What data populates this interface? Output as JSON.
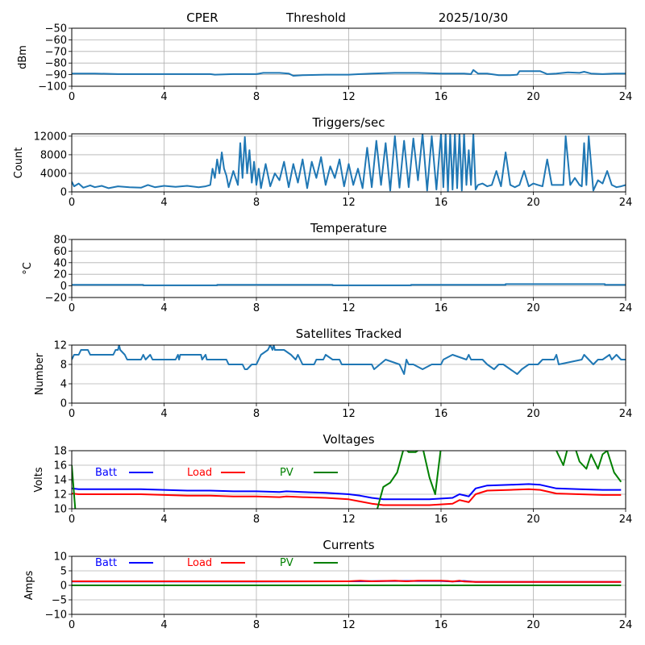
{
  "header": {
    "station": "CPER",
    "mode": "Threshold",
    "date": "2025/10/30"
  },
  "chart_data": [
    {
      "id": "power",
      "type": "line",
      "title": "",
      "ylabel": "dBm",
      "xlabel": "",
      "xlim": [
        0,
        24
      ],
      "ylim": [
        -100,
        -50
      ],
      "xticks": [
        0,
        4,
        8,
        12,
        16,
        20,
        24
      ],
      "yticks": [
        -100,
        -90,
        -80,
        -70,
        -60,
        -50
      ],
      "ytick_labels": [
        "−100",
        "−90",
        "−80",
        "−70",
        "−60",
        "−50"
      ],
      "grid": true,
      "series": [
        {
          "name": "power",
          "color": "#1f77b4",
          "x": [
            0,
            1,
            2,
            3,
            4,
            5,
            6,
            6.2,
            7,
            8,
            8.3,
            9,
            9.4,
            9.6,
            10,
            11,
            12,
            12.5,
            13,
            14,
            15,
            16,
            16.5,
            17,
            17.3,
            17.4,
            17.6,
            18,
            18.5,
            19,
            19.3,
            19.4,
            20,
            20.3,
            20.6,
            21,
            21.5,
            22,
            22.2,
            22.5,
            23,
            23.5,
            24
          ],
          "y": [
            -89,
            -89,
            -89.5,
            -89.5,
            -89.5,
            -89.5,
            -89.5,
            -90,
            -89.5,
            -89.5,
            -88.5,
            -88.5,
            -89,
            -91,
            -90.5,
            -90,
            -90,
            -89.5,
            -89,
            -88.5,
            -88.5,
            -89,
            -89,
            -89,
            -89.5,
            -86,
            -89,
            -89,
            -90.5,
            -90.5,
            -90,
            -87,
            -87,
            -87,
            -89.5,
            -89,
            -88,
            -88.5,
            -87.5,
            -89,
            -89.5,
            -89,
            -89
          ]
        }
      ]
    },
    {
      "id": "triggers",
      "type": "line",
      "title": "Triggers/sec",
      "ylabel": "Count",
      "xlabel": "",
      "xlim": [
        0,
        24
      ],
      "ylim": [
        0,
        12500
      ],
      "xticks": [
        0,
        4,
        8,
        12,
        16,
        20,
        24
      ],
      "yticks": [
        0,
        4000,
        8000,
        12000
      ],
      "ytick_labels": [
        "0",
        "4000",
        "8000",
        "12000"
      ],
      "grid": true,
      "series": [
        {
          "name": "triggers",
          "color": "#1f77b4",
          "x": [
            0,
            0.1,
            0.3,
            0.5,
            0.8,
            1,
            1.3,
            1.6,
            2,
            2.5,
            3,
            3.3,
            3.6,
            4,
            4.5,
            5,
            5.5,
            5.8,
            6,
            6.1,
            6.2,
            6.3,
            6.4,
            6.5,
            6.6,
            6.7,
            6.8,
            7,
            7.2,
            7.3,
            7.4,
            7.5,
            7.6,
            7.7,
            7.8,
            7.9,
            8,
            8.1,
            8.2,
            8.4,
            8.6,
            8.8,
            9,
            9.2,
            9.4,
            9.6,
            9.8,
            10,
            10.2,
            10.4,
            10.6,
            10.8,
            11,
            11.2,
            11.4,
            11.6,
            11.8,
            12,
            12.2,
            12.4,
            12.6,
            12.8,
            13,
            13.2,
            13.4,
            13.6,
            13.8,
            14,
            14.2,
            14.4,
            14.6,
            14.8,
            15,
            15.2,
            15.4,
            15.6,
            15.8,
            16,
            16.1,
            16.2,
            16.3,
            16.4,
            16.5,
            16.6,
            16.7,
            16.8,
            16.9,
            17,
            17.1,
            17.2,
            17.3,
            17.4,
            17.5,
            17.6,
            17.8,
            18,
            18.2,
            18.4,
            18.6,
            18.8,
            19,
            19.2,
            19.4,
            19.6,
            19.8,
            20,
            20.2,
            20.4,
            20.6,
            20.8,
            21,
            21.2,
            21.3,
            21.4,
            21.6,
            21.8,
            22,
            22.1,
            22.2,
            22.3,
            22.4,
            22.6,
            22.8,
            23,
            23.2,
            23.4,
            23.6,
            23.8,
            24
          ],
          "y": [
            2200,
            1200,
            1800,
            900,
            1400,
            1000,
            1300,
            800,
            1200,
            1000,
            900,
            1500,
            1000,
            1300,
            1100,
            1300,
            1000,
            1200,
            1500,
            5000,
            3000,
            7000,
            4000,
            8500,
            5000,
            3500,
            1000,
            4500,
            1500,
            10500,
            3000,
            11800,
            4000,
            9000,
            2000,
            6500,
            1500,
            5000,
            800,
            6000,
            1200,
            4000,
            2500,
            6500,
            1000,
            6000,
            2000,
            7000,
            800,
            6500,
            3000,
            7500,
            1500,
            5500,
            3000,
            7000,
            1200,
            6000,
            1500,
            5000,
            800,
            9500,
            1000,
            11000,
            1500,
            10500,
            300,
            12000,
            900,
            11000,
            1000,
            11500,
            2500,
            12500,
            300,
            12000,
            500,
            12500,
            1000,
            12500,
            200,
            12500,
            500,
            12500,
            800,
            12500,
            300,
            12500,
            1500,
            9000,
            1500,
            12500,
            500,
            1500,
            1800,
            1200,
            1500,
            4500,
            1200,
            8500,
            1500,
            1000,
            1500,
            4500,
            1200,
            1800,
            1500,
            1200,
            7000,
            1500,
            1500,
            1500,
            1500,
            12000,
            1500,
            3000,
            1500,
            1200,
            10500,
            1500,
            12000,
            300,
            2500,
            1800,
            4500,
            1500,
            1000,
            1200,
            1500
          ],
          "note": "approximate envelope of dense noisy trace"
        }
      ]
    },
    {
      "id": "temperature",
      "type": "line",
      "title": "Temperature",
      "ylabel": "°C",
      "xlabel": "",
      "xlim": [
        0,
        24
      ],
      "ylim": [
        -20,
        80
      ],
      "xticks": [
        0,
        4,
        8,
        12,
        16,
        20,
        24
      ],
      "yticks": [
        -20,
        0,
        20,
        40,
        60,
        80
      ],
      "ytick_labels": [
        "−20",
        "0",
        "20",
        "40",
        "60",
        "80"
      ],
      "grid": true,
      "series": [
        {
          "name": "temperature",
          "color": "#1f77b4",
          "x": [
            0,
            3.1,
            3.1,
            6.3,
            6.3,
            11.3,
            11.3,
            14.7,
            14.7,
            18.8,
            18.8,
            23.1,
            23.1,
            24
          ],
          "y": [
            2,
            2,
            1,
            1,
            2,
            2,
            1,
            1,
            2,
            2,
            3,
            3,
            2,
            2
          ]
        }
      ]
    },
    {
      "id": "satellites",
      "type": "line",
      "title": "Satellites Tracked",
      "ylabel": "Number",
      "xlabel": "",
      "xlim": [
        0,
        24
      ],
      "ylim": [
        0,
        12
      ],
      "xticks": [
        0,
        4,
        8,
        12,
        16,
        20,
        24
      ],
      "yticks": [
        0,
        4,
        8,
        12
      ],
      "ytick_labels": [
        "0",
        "4",
        "8",
        "12"
      ],
      "grid": true,
      "series": [
        {
          "name": "satellites",
          "color": "#1f77b4",
          "x": [
            0,
            0.1,
            0.3,
            0.4,
            0.7,
            0.8,
            1.8,
            1.9,
            2,
            2.05,
            2.1,
            2.3,
            2.4,
            3,
            3.1,
            3.2,
            3.4,
            3.5,
            3.6,
            4.5,
            4.6,
            4.65,
            4.7,
            5,
            5,
            5.6,
            5.65,
            5.8,
            5.85,
            6,
            6.7,
            6.8,
            7.4,
            7.5,
            7.6,
            7.8,
            8.0,
            8.2,
            8.5,
            8.6,
            8.7,
            8.75,
            8.8,
            9.2,
            9.5,
            9.7,
            9.8,
            10,
            10.5,
            10.6,
            10.9,
            11,
            11.3,
            11.6,
            11.7,
            11.9,
            12,
            13,
            13.1,
            13.6,
            14.2,
            14.4,
            14.5,
            14.6,
            14.8,
            15.2,
            15.6,
            16,
            16.1,
            16.5,
            17.1,
            17.2,
            17.3,
            17.8,
            18,
            18.3,
            18.5,
            18.7,
            19,
            19.3,
            19.5,
            19.8,
            20.2,
            20.4,
            20.9,
            21,
            21.1,
            22.1,
            22.2,
            22.4,
            22.6,
            22.8,
            23,
            23.3,
            23.4,
            23.6,
            23.8,
            24
          ],
          "y": [
            9,
            10,
            10,
            11,
            11,
            10,
            10,
            11,
            11,
            12,
            11,
            10,
            9,
            9,
            10,
            9,
            10,
            9,
            9,
            9,
            10,
            9,
            10,
            10,
            10,
            10,
            9,
            10,
            9,
            9,
            9,
            8,
            8,
            7,
            7,
            8,
            8,
            10,
            11,
            12,
            11,
            12,
            11,
            11,
            10,
            9,
            10,
            8,
            8,
            9,
            9,
            10,
            9,
            9,
            8,
            8,
            8,
            8,
            7,
            9,
            8,
            6,
            9,
            8,
            8,
            7,
            8,
            8,
            9,
            10,
            9,
            10,
            9,
            9,
            8,
            7,
            8,
            8,
            7,
            6,
            7,
            8,
            8,
            9,
            9,
            10,
            8,
            9,
            10,
            9,
            8,
            9,
            9,
            10,
            9,
            10,
            9,
            9
          ],
          "note": "step trace, values approximated"
        }
      ]
    },
    {
      "id": "voltages",
      "type": "line",
      "title": "Voltages",
      "ylabel": "Volts",
      "xlabel": "",
      "xlim": [
        0,
        24
      ],
      "ylim": [
        10,
        18
      ],
      "xticks": [
        0,
        4,
        8,
        12,
        16,
        20,
        24
      ],
      "yticks": [
        10,
        12,
        14,
        16,
        18
      ],
      "ytick_labels": [
        "10",
        "12",
        "14",
        "16",
        "18"
      ],
      "grid": true,
      "legend": [
        {
          "label": "Batt",
          "color": "#0000ff"
        },
        {
          "label": "Load",
          "color": "#ff0000"
        },
        {
          "label": "PV",
          "color": "#008000"
        }
      ],
      "legend_placement": "top-left inline",
      "series": [
        {
          "name": "Batt",
          "color": "#0000ff",
          "x": [
            0,
            0.3,
            1,
            2,
            3,
            4,
            5,
            6,
            7,
            8,
            9,
            9.3,
            10,
            11,
            11.5,
            12,
            12.5,
            13,
            13.5,
            14,
            14.5,
            15,
            15.5,
            16,
            16.5,
            16.8,
            17.2,
            17.5,
            18,
            19,
            19.8,
            20.3,
            21,
            22,
            23,
            23.8
          ],
          "y": [
            12.8,
            12.7,
            12.7,
            12.7,
            12.7,
            12.6,
            12.5,
            12.5,
            12.4,
            12.4,
            12.3,
            12.4,
            12.3,
            12.2,
            12.1,
            12.0,
            11.8,
            11.5,
            11.3,
            11.3,
            11.3,
            11.3,
            11.3,
            11.4,
            11.5,
            12.0,
            11.7,
            12.8,
            13.2,
            13.3,
            13.4,
            13.3,
            12.8,
            12.7,
            12.6,
            12.6
          ]
        },
        {
          "name": "Load",
          "color": "#ff0000",
          "x": [
            0,
            0.3,
            1,
            2,
            3,
            4,
            5,
            6,
            7,
            8,
            9,
            9.3,
            10,
            11,
            11.5,
            12,
            12.5,
            13,
            13.5,
            14,
            14.5,
            15,
            15.5,
            16,
            16.5,
            16.8,
            17.2,
            17.5,
            18,
            19,
            19.8,
            20.3,
            21,
            22,
            23,
            23.8
          ],
          "y": [
            12.1,
            12.0,
            12.0,
            12.0,
            12.0,
            11.9,
            11.8,
            11.8,
            11.7,
            11.7,
            11.6,
            11.7,
            11.6,
            11.5,
            11.4,
            11.3,
            11.0,
            10.7,
            10.5,
            10.5,
            10.5,
            10.5,
            10.5,
            10.6,
            10.7,
            11.2,
            10.9,
            12.0,
            12.5,
            12.6,
            12.7,
            12.6,
            12.1,
            12.0,
            11.9,
            11.9
          ]
        },
        {
          "name": "PV",
          "color": "#008000",
          "x": [
            0,
            0.15,
            0.3,
            13.2,
            13.5,
            13.8,
            14.1,
            14.4,
            14.6,
            14.9,
            15.2,
            15.5,
            15.75,
            16,
            20.8,
            21,
            21.3,
            21.5,
            21.8,
            22,
            22.3,
            22.5,
            22.8,
            23.0,
            23.2,
            23.5,
            23.8
          ],
          "y": [
            16.0,
            10.0,
            9.5,
            9.5,
            13.0,
            13.6,
            15.0,
            18.5,
            17.8,
            17.8,
            18.5,
            14.3,
            12.0,
            18.5,
            18.5,
            18.0,
            16.0,
            18.5,
            18.5,
            16.5,
            15.5,
            17.5,
            15.5,
            17.5,
            18.0,
            15.0,
            13.7
          ],
          "note": "PV clipped outside axis range 10-18"
        }
      ]
    },
    {
      "id": "currents",
      "type": "line",
      "title": "Currents",
      "ylabel": "Amps",
      "xlabel": "",
      "xlim": [
        0,
        24
      ],
      "ylim": [
        -10,
        10
      ],
      "xticks": [
        0,
        4,
        8,
        12,
        16,
        20,
        24
      ],
      "yticks": [
        -10,
        -5,
        0,
        5,
        10
      ],
      "ytick_labels": [
        "−10",
        "−5",
        "0",
        "5",
        "10"
      ],
      "grid": true,
      "legend": [
        {
          "label": "Batt",
          "color": "#0000ff"
        },
        {
          "label": "Load",
          "color": "#ff0000"
        },
        {
          "label": "PV",
          "color": "#008000"
        }
      ],
      "legend_placement": "top-left inline",
      "series": [
        {
          "name": "Batt",
          "color": "#0000ff",
          "x": [
            0,
            8,
            12,
            14,
            16,
            16.5,
            17,
            17.5,
            20,
            23.8
          ],
          "y": [
            1.3,
            1.3,
            1.4,
            1.5,
            1.5,
            1.3,
            1.5,
            1.2,
            1.2,
            1.2
          ]
        },
        {
          "name": "Load",
          "color": "#ff0000",
          "x": [
            0,
            8,
            12,
            12.5,
            13,
            14,
            14.5,
            15,
            16,
            16.3,
            16.5,
            16.8,
            17,
            17.5,
            20,
            23.8
          ],
          "y": [
            1.4,
            1.4,
            1.4,
            1.6,
            1.4,
            1.6,
            1.4,
            1.6,
            1.6,
            1.5,
            1.3,
            1.6,
            1.3,
            1.2,
            1.2,
            1.2
          ]
        },
        {
          "name": "PV",
          "color": "#008000",
          "x": [
            0,
            23.8
          ],
          "y": [
            0,
            0
          ]
        }
      ]
    }
  ]
}
